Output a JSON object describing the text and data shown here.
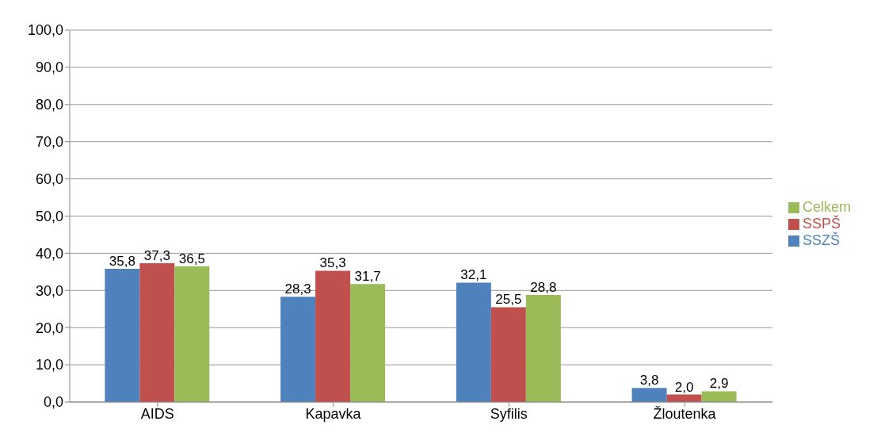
{
  "chart_data": {
    "type": "bar",
    "categories": [
      "AIDS",
      "Kapavka",
      "Syfilis",
      "Žloutenka"
    ],
    "series": [
      {
        "name": "SSZŠ",
        "color": "#4f81bd",
        "values": [
          35.8,
          28.3,
          32.1,
          3.8
        ],
        "value_labels": [
          "35,8",
          "28,3",
          "32,1",
          "3,8"
        ]
      },
      {
        "name": "SSPŠ",
        "color": "#c0504d",
        "values": [
          37.3,
          35.3,
          25.5,
          2.0
        ],
        "value_labels": [
          "37,3",
          "35,3",
          "25,5",
          "2,0"
        ]
      },
      {
        "name": "Celkem",
        "color": "#9bbb59",
        "values": [
          36.5,
          31.7,
          28.8,
          2.9
        ],
        "value_labels": [
          "36,5",
          "31,7",
          "28,8",
          "2,9"
        ]
      }
    ],
    "ylim": [
      0,
      100
    ],
    "yticks": [
      {
        "value": 0,
        "label": "0,0"
      },
      {
        "value": 10,
        "label": "10,0"
      },
      {
        "value": 20,
        "label": "20,0"
      },
      {
        "value": 30,
        "label": "30,0"
      },
      {
        "value": 40,
        "label": "40,0"
      },
      {
        "value": 50,
        "label": "50,0"
      },
      {
        "value": 60,
        "label": "60,0"
      },
      {
        "value": 70,
        "label": "70,0"
      },
      {
        "value": 80,
        "label": "80,0"
      },
      {
        "value": 90,
        "label": "90,0"
      },
      {
        "value": 100,
        "label": "100,0"
      }
    ],
    "grid": "y",
    "legend": "right"
  }
}
